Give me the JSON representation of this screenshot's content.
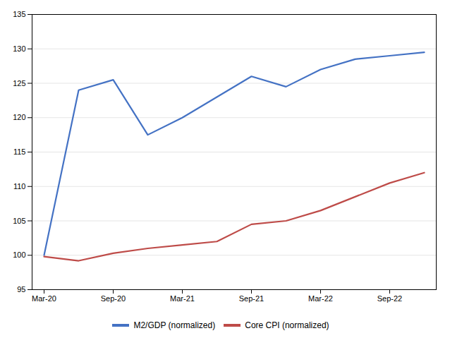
{
  "chart_data": {
    "type": "line",
    "categories": [
      "Mar-20",
      null,
      "Sep-20",
      null,
      "Mar-21",
      null,
      "Sep-21",
      null,
      "Mar-22",
      null,
      "Sep-22",
      null
    ],
    "series": [
      {
        "name": "M2/GDP (normalized)",
        "color": "#4472C4",
        "values": [
          100.0,
          124.0,
          125.5,
          117.5,
          120.0,
          123.0,
          126.0,
          124.5,
          127.0,
          128.5,
          129.0,
          129.5
        ]
      },
      {
        "name": "Core CPI (normalized)",
        "color": "#BE4B48",
        "values": [
          99.8,
          99.2,
          100.3,
          101.0,
          101.5,
          102.0,
          104.5,
          105.0,
          106.5,
          108.5,
          110.5,
          112.0
        ]
      }
    ],
    "ylim": [
      95,
      135
    ],
    "yticks": [
      95,
      100,
      105,
      110,
      115,
      120,
      125,
      130,
      135
    ],
    "grid": true,
    "legend": "bottom"
  }
}
